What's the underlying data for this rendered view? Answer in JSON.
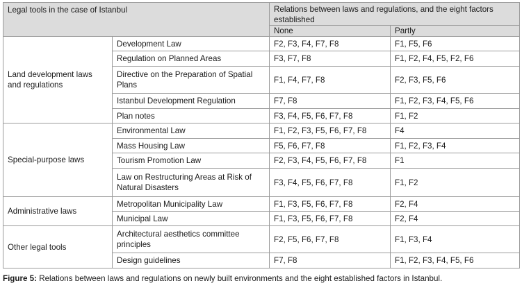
{
  "header": {
    "col1": "Legal tools in the case of Istanbul",
    "col2": "Relations between laws and regulations, and the eight factors established",
    "none": "None",
    "partly": "Partly"
  },
  "groups": [
    {
      "label": "Land development laws and regulations",
      "rows": [
        {
          "tool": "Development Law",
          "none": "F2, F3, F4, F7, F8",
          "partly": "F1, F5, F6"
        },
        {
          "tool": "Regulation on Planned Areas",
          "none": "F3, F7, F8",
          "partly": "F1, F2, F4, F5, F2, F6"
        },
        {
          "tool": "Directive on the Preparation of Spatial Plans",
          "none": "F1, F4, F7, F8",
          "partly": "F2, F3, F5, F6"
        },
        {
          "tool": "Istanbul Development Regulation",
          "none": "F7, F8",
          "partly": "F1, F2, F3, F4, F5, F6"
        },
        {
          "tool": "Plan notes",
          "none": "F3, F4, F5, F6, F7, F8",
          "partly": "F1, F2"
        }
      ]
    },
    {
      "label": "Special-purpose laws",
      "rows": [
        {
          "tool": "Environmental Law",
          "none": "F1, F2, F3, F5, F6, F7, F8",
          "partly": "F4"
        },
        {
          "tool": "Mass Housing Law",
          "none": "F5, F6, F7, F8",
          "partly": "F1, F2, F3, F4"
        },
        {
          "tool": "Tourism Promotion Law",
          "none": "F2, F3, F4, F5, F6, F7, F8",
          "partly": "F1"
        },
        {
          "tool": "Law on Restructuring Areas at Risk of Natural Disasters",
          "none": "F3, F4, F5, F6, F7, F8",
          "partly": "F1, F2"
        }
      ]
    },
    {
      "label": "Administrative laws",
      "rows": [
        {
          "tool": "Metropolitan Municipality Law",
          "none": "F1, F3, F5, F6, F7, F8",
          "partly": "F2, F4"
        },
        {
          "tool": "Municipal Law",
          "none": "F1, F3, F5, F6, F7, F8",
          "partly": "F2, F4"
        }
      ]
    },
    {
      "label": "Other legal tools",
      "rows": [
        {
          "tool": "Architectural aesthetics committee principles",
          "none": "F2, F5, F6, F7, F8",
          "partly": "F1, F3, F4"
        },
        {
          "tool": "Design guidelines",
          "none": "F7, F8",
          "partly": "F1, F2, F3, F4, F5, F6"
        }
      ]
    }
  ],
  "caption": {
    "label": "Figure 5:",
    "text": " Relations between laws and regulations on newly built environments and the eight established factors in Istanbul."
  }
}
